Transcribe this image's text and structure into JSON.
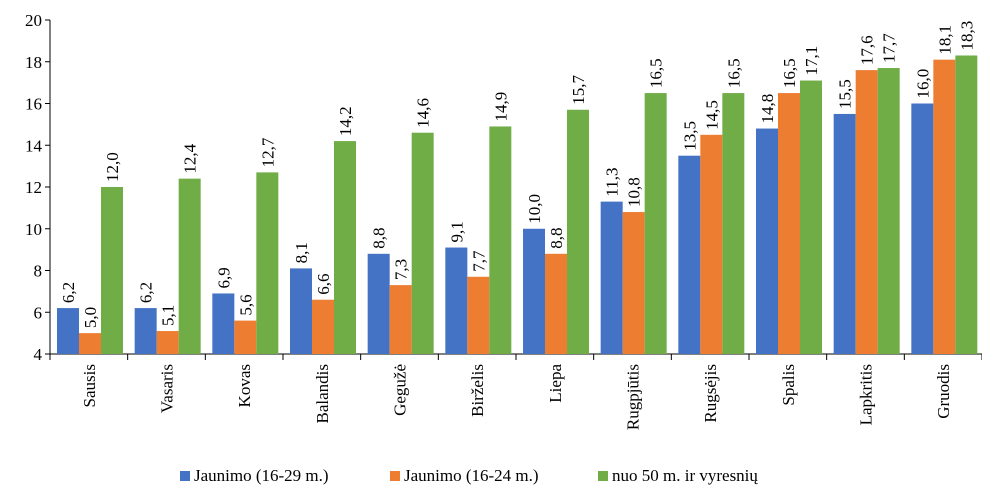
{
  "chart_data": {
    "type": "bar",
    "categories": [
      "Sausis",
      "Vasaris",
      "Kovas",
      "Balandis",
      "Gegužė",
      "Birželis",
      "Liepa",
      "Rugpjūtis",
      "Rugsėjis",
      "Spalis",
      "Lapkritis",
      "Gruodis"
    ],
    "series": [
      {
        "name": "Jaunimo (16-29 m.)",
        "color": "#4472C4",
        "values": [
          6.2,
          6.2,
          6.9,
          8.1,
          8.8,
          9.1,
          10.0,
          11.3,
          13.5,
          14.8,
          15.5,
          16.0
        ],
        "labels": [
          "6,2",
          "6,2",
          "6,9",
          "8,1",
          "8,8",
          "9,1",
          "10,0",
          "11,3",
          "13,5",
          "14,8",
          "15,5",
          "16,0"
        ]
      },
      {
        "name": "Jaunimo (16-24 m.)",
        "color": "#ED7D31",
        "values": [
          5.0,
          5.1,
          5.6,
          6.6,
          7.3,
          7.7,
          8.8,
          10.8,
          14.5,
          16.5,
          17.6,
          18.1
        ],
        "labels": [
          "5,0",
          "5,1",
          "5,6",
          "6,6",
          "7,3",
          "7,7",
          "8,8",
          "10,8",
          "14,5",
          "16,5",
          "17,6",
          "18,1"
        ]
      },
      {
        "name": "nuo 50 m. ir vyresnių",
        "color": "#70AD47",
        "values": [
          12.0,
          12.4,
          12.7,
          14.2,
          14.6,
          14.9,
          15.7,
          16.5,
          16.5,
          17.1,
          17.7,
          18.3
        ],
        "labels": [
          "12,0",
          "12,4",
          "12,7",
          "14,2",
          "14,6",
          "14,9",
          "15,7",
          "16,5",
          "16,5",
          "17,1",
          "17,7",
          "18,3"
        ]
      }
    ],
    "yticks": [
      "4",
      "6",
      "8",
      "10",
      "12",
      "14",
      "16",
      "18",
      "20"
    ],
    "ylim": [
      4,
      20
    ],
    "grid": false,
    "legend": "bottom"
  }
}
